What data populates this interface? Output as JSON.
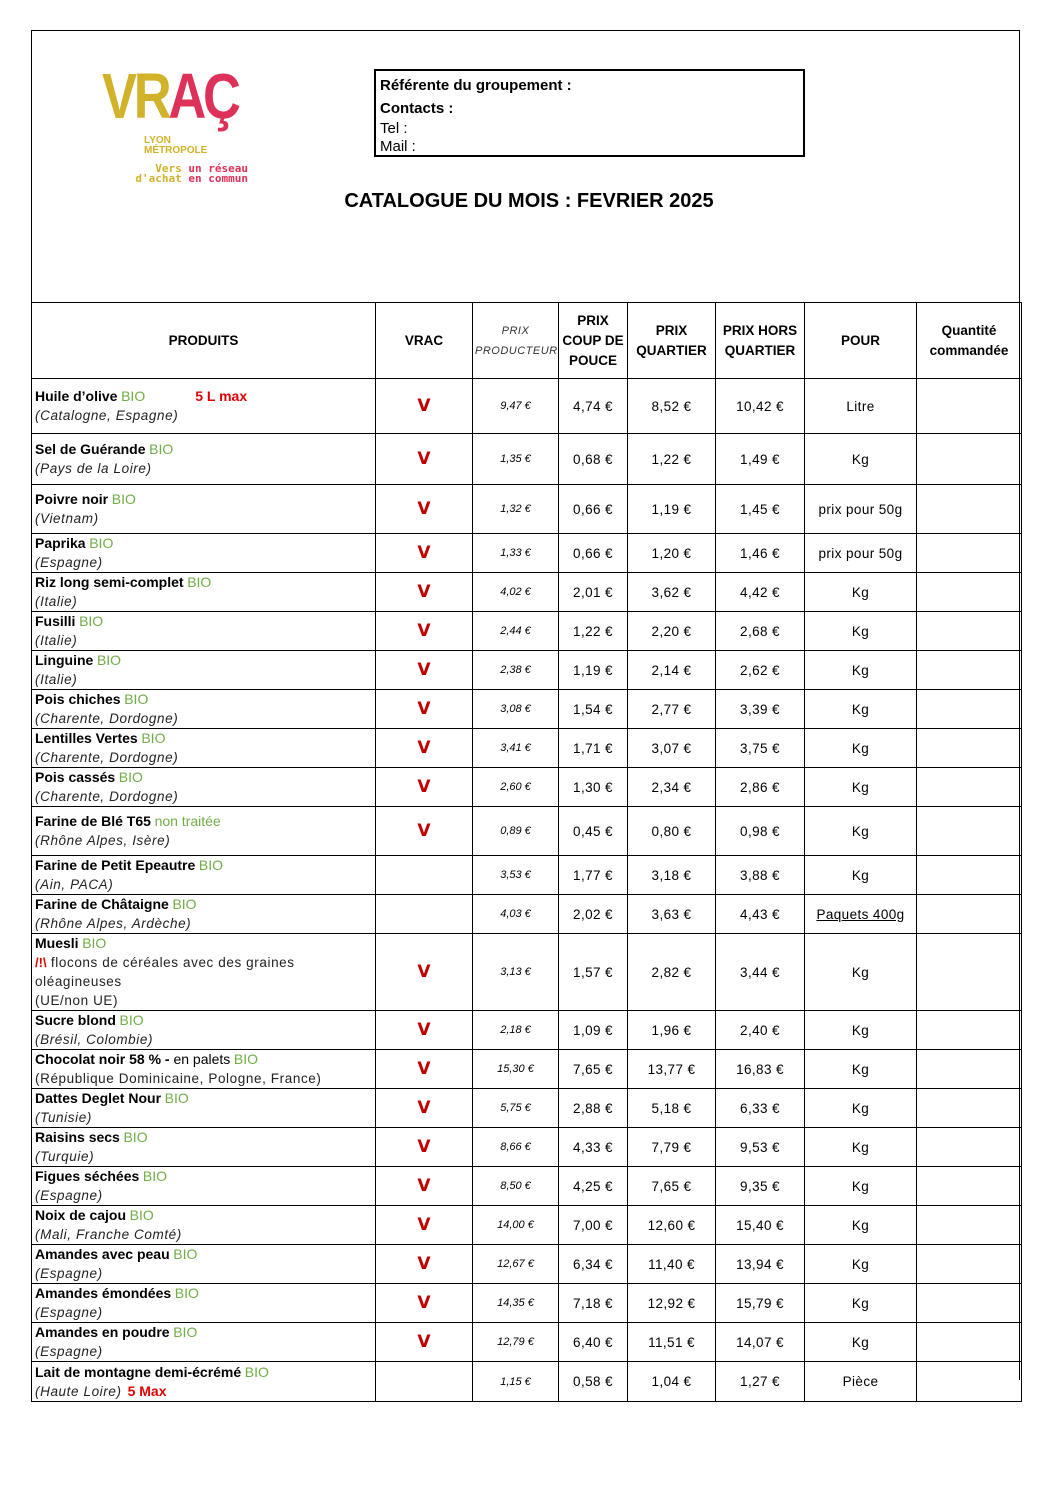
{
  "logo": {
    "brand": "VRAC",
    "city_line1": "LYON",
    "city_line2": "MÉTROPOLE",
    "tagline_part1": "Vers ",
    "tagline_part2": "un réseau",
    "tagline_part3": "d'achat ",
    "tagline_part4": "en commun",
    "colors": {
      "yellow": "#d2b22a",
      "pink": "#de3159"
    }
  },
  "info_box": {
    "referente": "Référente du groupement :",
    "contacts": "Contacts :",
    "tel": "Tel :",
    "mail": "Mail :"
  },
  "title": "CATALOGUE DU MOIS : FEVRIER 2025",
  "columns": {
    "produits": "PRODUITS",
    "vrac": "VRAC",
    "prix_producteur": "PRIX PRODUCTEUR",
    "prix_coup_de_pouce": "PRIX COUP DE POUCE",
    "prix_quartier": "PRIX QUARTIER",
    "prix_hors_quartier": "PRIX HORS QUARTIER",
    "pour": "POUR",
    "quantite": "Quantité commandée"
  },
  "vrac_mark": "V",
  "colors": {
    "bio_green": "#70ad47",
    "vrac_red": "#c00000",
    "note_red": "#e00000"
  },
  "rows": [
    {
      "name": "Huile d’olive",
      "tag": "BIO",
      "note": "5 L max",
      "origin": "(Catalogne, Espagne)",
      "vrac": true,
      "producteur": "9,47 €",
      "coup": "4,74 €",
      "quartier": "8,52 €",
      "hors": "10,42 €",
      "pour": "Litre"
    },
    {
      "name": "Sel de Guérande",
      "tag": "BIO",
      "origin": "(Pays de la Loire)",
      "vrac": true,
      "producteur": "1,35 €",
      "coup": "0,68 €",
      "quartier": "1,22 €",
      "hors": "1,49 €",
      "pour": "Kg"
    },
    {
      "name": "Poivre noir",
      "tag": "BIO",
      "origin": "(Vietnam)",
      "vrac": true,
      "producteur": "1,32 €",
      "coup": "0,66 €",
      "quartier": "1,19 €",
      "hors": "1,45 €",
      "pour": "prix pour 50g"
    },
    {
      "name": "Paprika",
      "tag": "BIO",
      "origin": "(Espagne)",
      "vrac": true,
      "producteur": "1,33 €",
      "coup": "0,66 €",
      "quartier": "1,20 €",
      "hors": "1,46 €",
      "pour": "prix pour 50g"
    },
    {
      "name": "Riz long semi-complet",
      "tag": "BIO",
      "origin": "(Italie)",
      "vrac": true,
      "producteur": "4,02 €",
      "coup": "2,01 €",
      "quartier": "3,62 €",
      "hors": "4,42 €",
      "pour": "Kg"
    },
    {
      "name": "Fusilli",
      "tag": "BIO",
      "origin": "(Italie)",
      "vrac": true,
      "producteur": "2,44 €",
      "coup": "1,22 €",
      "quartier": "2,20 €",
      "hors": "2,68 €",
      "pour": "Kg"
    },
    {
      "name": "Linguine",
      "tag": "BIO",
      "origin": "(Italie)",
      "vrac": true,
      "producteur": "2,38 €",
      "coup": "1,19 €",
      "quartier": "2,14 €",
      "hors": "2,62 €",
      "pour": "Kg"
    },
    {
      "name": "Pois chiches",
      "tag": "BIO",
      "origin": "(Charente, Dordogne)",
      "vrac": true,
      "producteur": "3,08 €",
      "coup": "1,54 €",
      "quartier": "2,77 €",
      "hors": "3,39 €",
      "pour": "Kg"
    },
    {
      "name": "Lentilles Vertes",
      "tag": "BIO",
      "origin": "(Charente, Dordogne)",
      "vrac": true,
      "producteur": "3,41 €",
      "coup": "1,71 €",
      "quartier": "3,07 €",
      "hors": "3,75 €",
      "pour": "Kg"
    },
    {
      "name": "Pois cassés",
      "tag": "BIO",
      "origin": "(Charente, Dordogne)",
      "vrac": true,
      "producteur": "2,60 €",
      "coup": "1,30 €",
      "quartier": "2,34 €",
      "hors": "2,86 €",
      "pour": "Kg"
    },
    {
      "name": "Farine de Blé T65",
      "tag": "non traitée",
      "origin": "(Rhône Alpes, Isère)",
      "vrac": true,
      "producteur": "0,89 €",
      "coup": "0,45 €",
      "quartier": "0,80 €",
      "hors": "0,98 €",
      "pour": "Kg"
    },
    {
      "name": "Farine de Petit Epeautre",
      "tag": "BIO",
      "origin": "(Ain, PACA)",
      "vrac": false,
      "producteur": "3,53 €",
      "coup": "1,77 €",
      "quartier": "3,18 €",
      "hors": "3,88 €",
      "pour": "Kg"
    },
    {
      "name": "Farine de Châtaigne",
      "tag": "BIO",
      "origin": "(Rhône Alpes, Ardèche)",
      "vrac": false,
      "producteur": "4,03 €",
      "coup": "2,02 €",
      "quartier": "3,63 €",
      "hors": "4,43 €",
      "pour": "Paquets 400g",
      "pour_underline": true
    },
    {
      "name": "Muesli",
      "tag": "BIO",
      "warning": "/!\\",
      "detail": " flocons de céréales avec des graines oléagineuses",
      "origin": "(UE/non UE)",
      "origin_plain": true,
      "vrac": true,
      "producteur": "3,13 €",
      "coup": "1,57 €",
      "quartier": "2,82 €",
      "hors": "3,44 €",
      "pour": "Kg"
    },
    {
      "name": "Sucre blond",
      "tag": "BIO",
      "origin": "(Brésil, Colombie)",
      "vrac": true,
      "producteur": "2,18 €",
      "coup": "1,09 €",
      "quartier": "1,96 €",
      "hors": "2,40 €",
      "pour": "Kg"
    },
    {
      "name": "Chocolat noir 58 % -",
      "suffix": " en palets",
      "tag": "BIO",
      "origin": "(République Dominicaine, Pologne, France)",
      "origin_plain": true,
      "vrac": true,
      "producteur": "15,30 €",
      "coup": "7,65 €",
      "quartier": "13,77 €",
      "hors": "16,83 €",
      "pour": "Kg"
    },
    {
      "name": "Dattes Deglet Nour",
      "tag": "BIO",
      "origin": "(Tunisie)",
      "vrac": true,
      "producteur": "5,75 €",
      "coup": "2,88 €",
      "quartier": "5,18 €",
      "hors": "6,33 €",
      "pour": "Kg"
    },
    {
      "name": "Raisins secs",
      "tag": "BIO",
      "origin": "(Turquie)",
      "vrac": true,
      "producteur": "8,66 €",
      "coup": "4,33 €",
      "quartier": "7,79 €",
      "hors": "9,53 €",
      "pour": "Kg"
    },
    {
      "name": "Figues séchées",
      "tag": "BIO",
      "origin": "(Espagne)",
      "vrac": true,
      "producteur": "8,50 €",
      "coup": "4,25 €",
      "quartier": "7,65 €",
      "hors": "9,35 €",
      "pour": "Kg"
    },
    {
      "name": "Noix de cajou",
      "tag": "BIO",
      "origin": "(Mali, Franche Comté)",
      "vrac": true,
      "producteur": "14,00 €",
      "coup": "7,00 €",
      "quartier": "12,60 €",
      "hors": "15,40 €",
      "pour": "Kg"
    },
    {
      "name": "Amandes avec peau",
      "tag": "BIO",
      "origin": "(Espagne)",
      "vrac": true,
      "producteur": "12,67 €",
      "coup": "6,34 €",
      "quartier": "11,40 €",
      "hors": "13,94 €",
      "pour": "Kg"
    },
    {
      "name": "Amandes émondées",
      "tag": "BIO",
      "origin": "(Espagne)",
      "vrac": true,
      "producteur": "14,35 €",
      "coup": "7,18 €",
      "quartier": "12,92 €",
      "hors": "15,79 €",
      "pour": "Kg"
    },
    {
      "name": "Amandes en poudre",
      "tag": "BIO",
      "origin": "(Espagne)",
      "vrac": true,
      "producteur": "12,79 €",
      "coup": "6,40 €",
      "quartier": "11,51 €",
      "hors": "14,07 €",
      "pour": "Kg"
    },
    {
      "name": "Lait de montagne demi-écrémé",
      "tag": "BIO",
      "origin": "(Haute Loire)",
      "origin_note": "5 Max",
      "vrac": false,
      "producteur": "1,15 €",
      "coup": "0,58 €",
      "quartier": "1,04 €",
      "hors": "1,27 €",
      "pour": "Pièce"
    }
  ]
}
